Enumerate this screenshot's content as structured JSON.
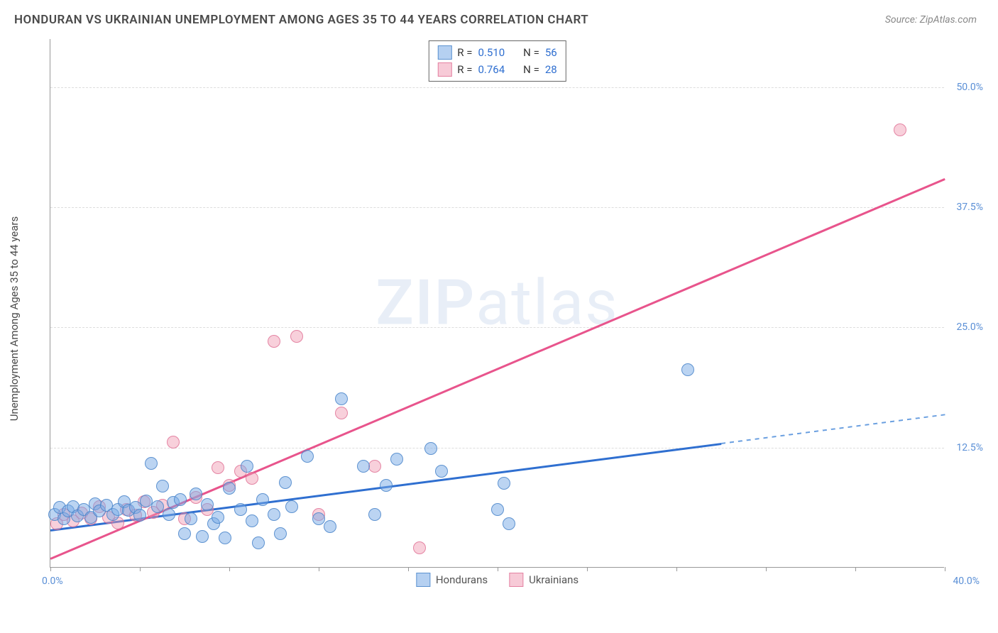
{
  "header": {
    "title": "HONDURAN VS UKRAINIAN UNEMPLOYMENT AMONG AGES 35 TO 44 YEARS CORRELATION CHART",
    "source": "Source: ZipAtlas.com"
  },
  "watermark": {
    "zip": "ZIP",
    "atlas": "atlas"
  },
  "chart": {
    "type": "scatter",
    "y_axis_label": "Unemployment Among Ages 35 to 44 years",
    "xlim": [
      0,
      40
    ],
    "ylim": [
      0,
      55
    ],
    "x_tick_labels": {
      "left": "0.0%",
      "right": "40.0%"
    },
    "x_tick_positions": [
      0,
      4,
      8,
      12,
      16,
      20,
      24,
      28,
      32,
      36,
      40
    ],
    "y_ticks": [
      {
        "value": 12.5,
        "label": "12.5%"
      },
      {
        "value": 25.0,
        "label": "25.0%"
      },
      {
        "value": 37.5,
        "label": "37.5%"
      },
      {
        "value": 50.0,
        "label": "50.0%"
      }
    ],
    "grid_color": "#dddddd",
    "axis_color": "#999999",
    "background_color": "#ffffff",
    "legend_top": {
      "rows": [
        {
          "color": "blue",
          "r_label": "R =",
          "r_value": "0.510",
          "n_label": "N =",
          "n_value": "56"
        },
        {
          "color": "pink",
          "r_label": "R =",
          "r_value": "0.764",
          "n_label": "N =",
          "n_value": "28"
        }
      ]
    },
    "legend_bottom": [
      {
        "color": "blue",
        "label": "Hondurans"
      },
      {
        "color": "pink",
        "label": "Ukrainians"
      }
    ],
    "series": {
      "hondurans": {
        "marker_fill": "rgba(120,170,230,0.5)",
        "marker_stroke": "rgba(70,130,200,0.8)",
        "marker_size": 18,
        "trend": {
          "color": "#2f6fd0",
          "width": 2.5,
          "x1": 0,
          "y1": 4.0,
          "x2": 30,
          "y2": 13.0,
          "dash_extend_x": 40,
          "dash_extend_y": 16.0
        },
        "points": [
          [
            0.2,
            5.5
          ],
          [
            0.4,
            6.2
          ],
          [
            0.6,
            5.0
          ],
          [
            0.8,
            5.8
          ],
          [
            1.0,
            6.3
          ],
          [
            1.2,
            5.3
          ],
          [
            1.5,
            6.0
          ],
          [
            1.8,
            5.2
          ],
          [
            2.0,
            6.6
          ],
          [
            2.2,
            5.8
          ],
          [
            2.5,
            6.4
          ],
          [
            2.8,
            5.5
          ],
          [
            3.0,
            6.0
          ],
          [
            3.3,
            6.8
          ],
          [
            3.5,
            5.9
          ],
          [
            3.8,
            6.2
          ],
          [
            4.0,
            5.4
          ],
          [
            4.3,
            6.9
          ],
          [
            4.5,
            10.8
          ],
          [
            4.8,
            6.3
          ],
          [
            5.0,
            8.4
          ],
          [
            5.3,
            5.5
          ],
          [
            5.5,
            6.7
          ],
          [
            5.8,
            7.0
          ],
          [
            6.0,
            3.5
          ],
          [
            6.3,
            5.0
          ],
          [
            6.5,
            7.6
          ],
          [
            6.8,
            3.2
          ],
          [
            7.0,
            6.5
          ],
          [
            7.3,
            4.5
          ],
          [
            7.5,
            5.2
          ],
          [
            7.8,
            3.0
          ],
          [
            8.0,
            8.2
          ],
          [
            8.5,
            6.0
          ],
          [
            8.8,
            10.5
          ],
          [
            9.0,
            4.8
          ],
          [
            9.3,
            2.5
          ],
          [
            9.5,
            7.0
          ],
          [
            10.0,
            5.5
          ],
          [
            10.3,
            3.5
          ],
          [
            10.5,
            8.8
          ],
          [
            10.8,
            6.3
          ],
          [
            11.5,
            11.5
          ],
          [
            12.0,
            5.0
          ],
          [
            12.5,
            4.2
          ],
          [
            13.0,
            17.5
          ],
          [
            14.0,
            10.5
          ],
          [
            14.5,
            5.5
          ],
          [
            15.0,
            8.5
          ],
          [
            15.5,
            11.2
          ],
          [
            17.0,
            12.3
          ],
          [
            17.5,
            10.0
          ],
          [
            20.0,
            6.0
          ],
          [
            20.3,
            8.7
          ],
          [
            20.5,
            4.5
          ],
          [
            28.5,
            20.5
          ]
        ]
      },
      "ukrainians": {
        "marker_fill": "rgba(240,150,175,0.45)",
        "marker_stroke": "rgba(220,100,140,0.7)",
        "marker_size": 18,
        "trend": {
          "color": "#e8548c",
          "width": 2.5,
          "x1": 0,
          "y1": 1.0,
          "x2": 40,
          "y2": 40.5
        },
        "points": [
          [
            0.3,
            4.5
          ],
          [
            0.6,
            5.5
          ],
          [
            1.0,
            4.8
          ],
          [
            1.4,
            5.6
          ],
          [
            1.8,
            5.0
          ],
          [
            2.2,
            6.3
          ],
          [
            2.6,
            5.2
          ],
          [
            3.0,
            4.6
          ],
          [
            3.4,
            6.0
          ],
          [
            3.8,
            5.4
          ],
          [
            4.2,
            6.8
          ],
          [
            4.6,
            5.7
          ],
          [
            5.0,
            6.4
          ],
          [
            5.5,
            13.0
          ],
          [
            6.0,
            5.0
          ],
          [
            6.5,
            7.2
          ],
          [
            7.0,
            6.0
          ],
          [
            7.5,
            10.3
          ],
          [
            8.0,
            8.5
          ],
          [
            8.5,
            10.0
          ],
          [
            9.0,
            9.2
          ],
          [
            10.0,
            23.5
          ],
          [
            11.0,
            24.0
          ],
          [
            12.0,
            5.5
          ],
          [
            13.0,
            16.0
          ],
          [
            14.5,
            10.5
          ],
          [
            16.5,
            2.0
          ],
          [
            38.0,
            45.5
          ]
        ]
      }
    }
  }
}
